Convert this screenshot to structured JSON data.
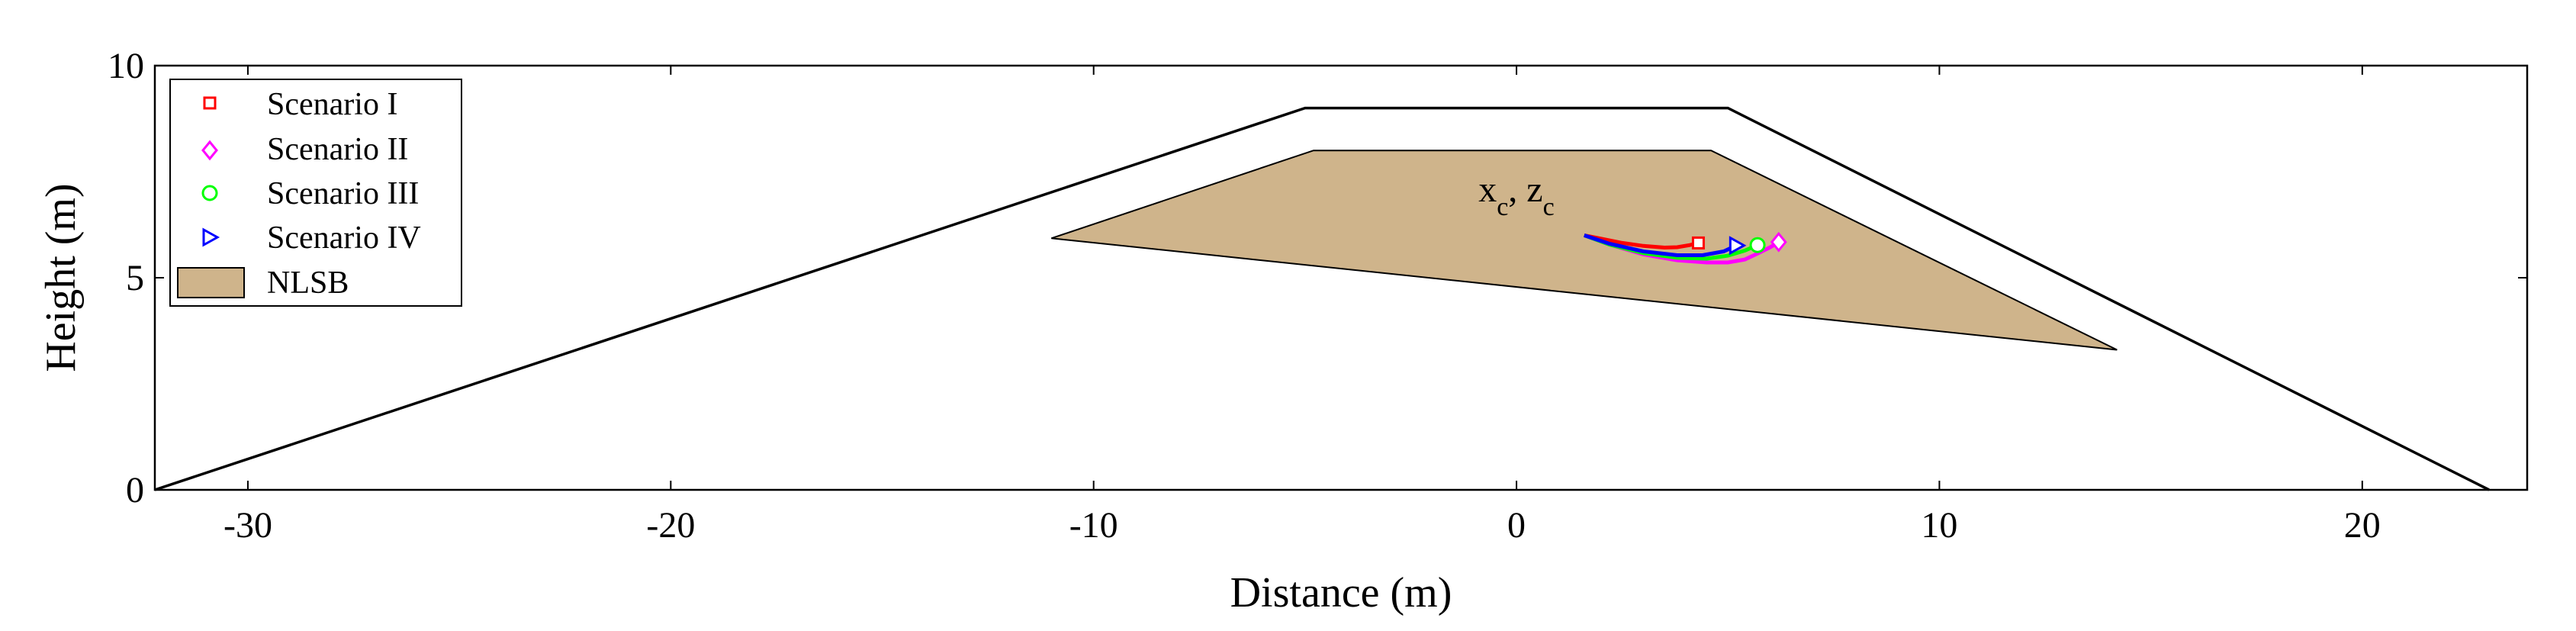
{
  "chart_data": {
    "type": "line",
    "title": "",
    "xlabel": "Distance (m)",
    "ylabel": "Height (m)",
    "xlim": [
      -32.2,
      23.9
    ],
    "ylim": [
      0,
      10
    ],
    "xticks": [
      -30,
      -20,
      -10,
      0,
      10,
      20
    ],
    "yticks": [
      0,
      5,
      10
    ],
    "grid": false,
    "legend_position": "top-left",
    "levee_outline": {
      "x": [
        -32.2,
        -5,
        5,
        23.0
      ],
      "y": [
        0,
        9,
        9,
        0
      ],
      "color": "#000000"
    },
    "nlsb": {
      "name": "NLSB",
      "color": "#cfb48b",
      "x": [
        -11.0,
        -4.8,
        4.6,
        14.2
      ],
      "y": [
        5.93,
        8.0,
        8.0,
        3.3
      ]
    },
    "series": [
      {
        "name": "Scenario I",
        "color": "#ff0000",
        "marker": "square",
        "x": [
          1.6,
          2.0,
          2.5,
          3.0,
          3.5,
          3.8,
          4.1,
          4.3
        ],
        "y": [
          6.0,
          5.92,
          5.82,
          5.75,
          5.71,
          5.72,
          5.77,
          5.82
        ]
      },
      {
        "name": "Scenario II",
        "color": "#ff00ff",
        "marker": "diamond",
        "x": [
          1.6,
          2.2,
          3.0,
          3.8,
          4.5,
          5.0,
          5.4,
          5.7,
          6.0,
          6.2
        ],
        "y": [
          6.0,
          5.78,
          5.55,
          5.41,
          5.36,
          5.36,
          5.43,
          5.57,
          5.72,
          5.84
        ]
      },
      {
        "name": "Scenario III",
        "color": "#00ff00",
        "marker": "circle",
        "x": [
          1.6,
          2.2,
          3.0,
          3.8,
          4.5,
          5.0,
          5.4,
          5.7
        ],
        "y": [
          6.0,
          5.78,
          5.58,
          5.47,
          5.45,
          5.52,
          5.64,
          5.77
        ]
      },
      {
        "name": "Scenario IV",
        "color": "#0000ff",
        "marker": "triangle-right",
        "x": [
          1.6,
          2.2,
          3.0,
          3.8,
          4.4,
          4.9,
          5.2
        ],
        "y": [
          6.0,
          5.8,
          5.62,
          5.53,
          5.53,
          5.62,
          5.76
        ]
      }
    ],
    "annotation": {
      "x_base": "x",
      "x_sub": "c",
      "sep": ", ",
      "z_base": "z",
      "z_sub": "c",
      "pos_x": -0.9,
      "pos_y": 6.8
    }
  }
}
